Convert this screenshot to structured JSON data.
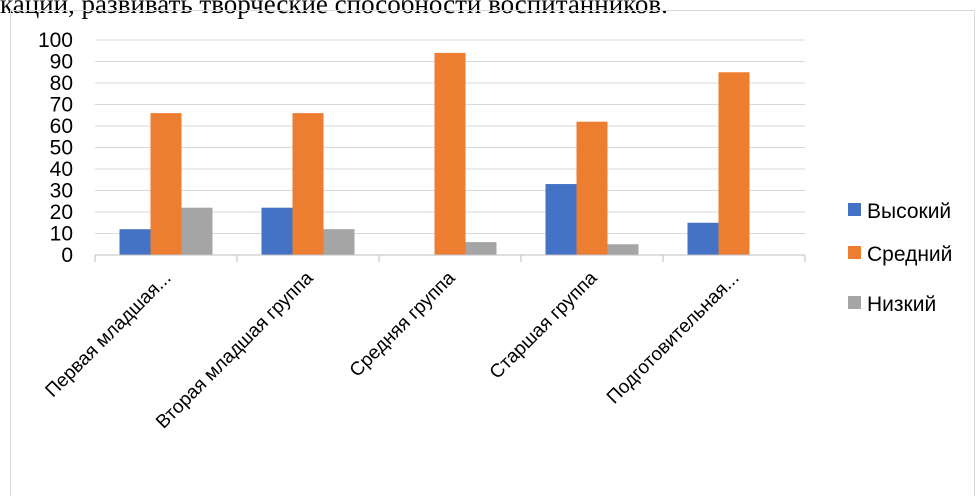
{
  "header": {
    "text": "кации, развивать творческие способности воспитанников."
  },
  "colors": {
    "high": "#4472C4",
    "medium": "#ED7D31",
    "low": "#A5A5A5",
    "grid": "#D9D9D9",
    "axis": "#BFBFBF"
  },
  "chart_data": {
    "type": "bar",
    "categories": [
      "Первая младшая...",
      "Вторая младшая группа",
      "Средняя группа",
      "Старшая группа",
      "Подготовительная..."
    ],
    "series": [
      {
        "name": "Высокий",
        "color": "#4472C4",
        "values": [
          12,
          22,
          0,
          33,
          15
        ]
      },
      {
        "name": "Средний",
        "color": "#ED7D31",
        "values": [
          66,
          66,
          94,
          62,
          85
        ]
      },
      {
        "name": "Низкий",
        "color": "#A5A5A5",
        "values": [
          22,
          12,
          6,
          5,
          0
        ]
      }
    ],
    "ylim": [
      0,
      100
    ],
    "yticks": [
      0,
      10,
      20,
      30,
      40,
      50,
      60,
      70,
      80,
      90,
      100
    ],
    "grid": true,
    "legend": "right",
    "title": "",
    "xlabel": "",
    "ylabel": ""
  }
}
